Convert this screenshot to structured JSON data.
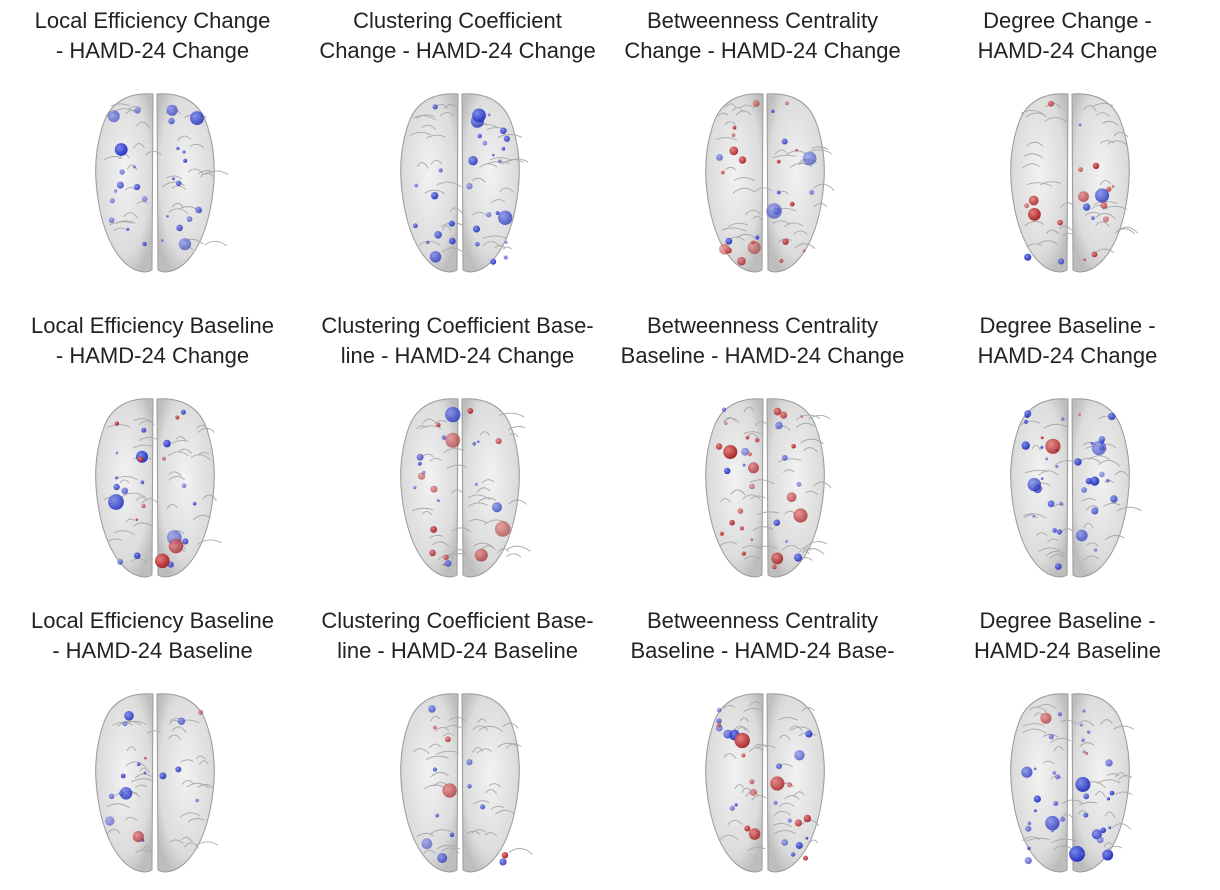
{
  "panels": [
    {
      "title1": "Local Efficiency Change",
      "title2": "- HAMD-24 Change"
    },
    {
      "title1": "Clustering Coefficient",
      "title2": "Change - HAMD-24 Change"
    },
    {
      "title1": "Betweenness Centrality",
      "title2": "Change - HAMD-24 Change"
    },
    {
      "title1": "Degree Change -",
      "title2": "HAMD-24 Change"
    },
    {
      "title1": "Local Efficiency Baseline",
      "title2": "- HAMD-24 Change"
    },
    {
      "title1": "Clustering Coefficient Base-",
      "title2": "line - HAMD-24 Change"
    },
    {
      "title1": "Betweenness Centrality",
      "title2": "Baseline - HAMD-24 Change"
    },
    {
      "title1": "Degree Baseline -",
      "title2": "HAMD-24 Change"
    },
    {
      "title1": "Local Efficiency Baseline",
      "title2": "- HAMD-24 Baseline"
    },
    {
      "title1": "Clustering Coefficient Base-",
      "title2": "line - HAMD-24 Baseline"
    },
    {
      "title1": "Betweenness Centrality",
      "title2": "Baseline - HAMD-24 Base-"
    },
    {
      "title1": "Degree Baseline -",
      "title2": "HAMD-24 Baseline"
    }
  ],
  "colors": {
    "positive": "#c0282a",
    "negative": "#2f3fd0",
    "brain": "#e6e6e6",
    "brain_edge": "#9a9a9a"
  }
}
